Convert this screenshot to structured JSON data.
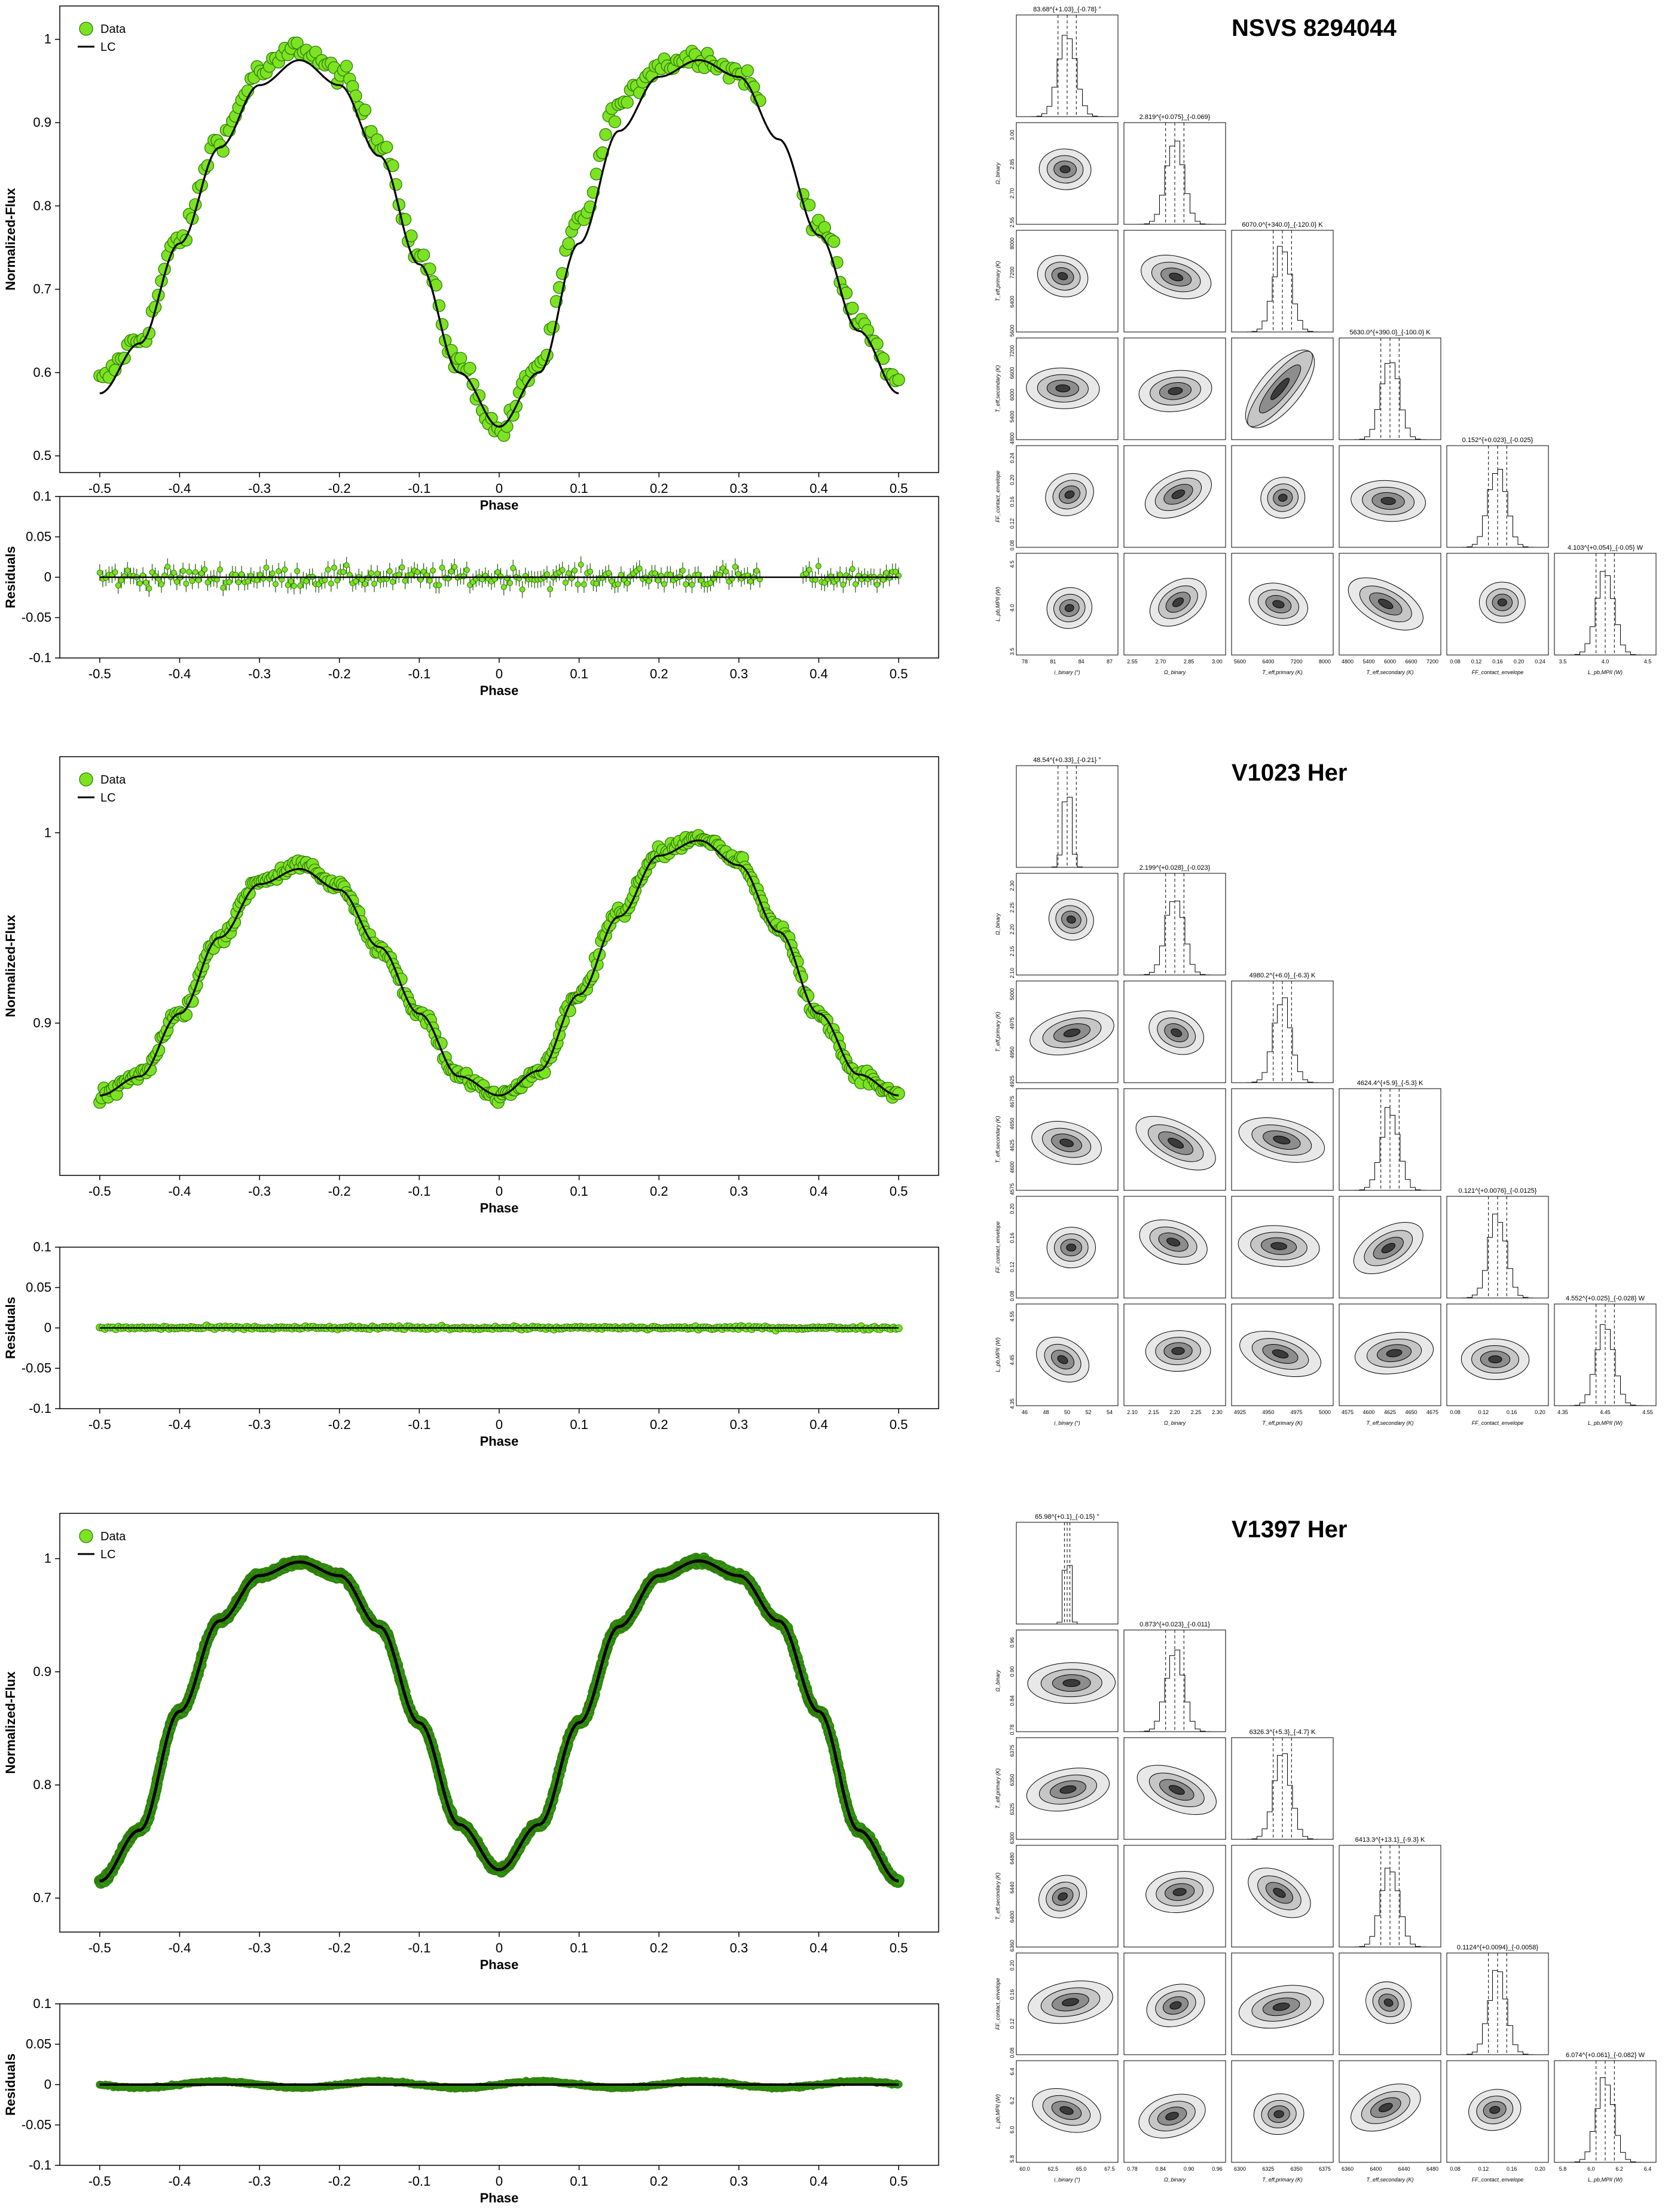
{
  "legend": {
    "data_label": "Data",
    "model_label": "LC"
  },
  "colors": {
    "data_fill": "#7ce322",
    "data_edge": "#2f7a08",
    "model": "#000000",
    "errbar": "#1a5a00",
    "dense_fill": "#2e9b14"
  },
  "axis_labels": {
    "phase": "Phase",
    "flux": "Normalized-Flux",
    "residuals": "Residuals"
  },
  "panels": [
    {
      "system": "NSVS 8294044",
      "lc_ylim": [
        0.48,
        1.04
      ],
      "lc_yticks": [
        "0.5",
        "0.6",
        "0.7",
        "0.8",
        "0.9",
        "1"
      ],
      "xticks": [
        "-0.5",
        "-0.4",
        "-0.3",
        "-0.2",
        "-0.1",
        "0",
        "0.1",
        "0.2",
        "0.3",
        "0.4",
        "0.5"
      ],
      "res_yticks": [
        "0.1",
        "0.05",
        "0",
        "-0.05",
        "-0.1"
      ],
      "corner": {
        "param_labels": [
          "i_binary (°)",
          "Ω_binary",
          "T_eff,primary (K)",
          "T_eff,secondary (K)",
          "FF_contact_envelope",
          "L_pb,MPII (W)"
        ],
        "headers": [
          "83.68^{+1.03}_{-0.78} °",
          "2.819^{+0.075}_{-0.069}",
          "6070.0^{+340.0}_{-120.0} K",
          "5630.0^{+390.0}_{-100.0} K",
          "0.152^{+0.023}_{-0.025}",
          "4.103^{+0.054}_{-0.05} W"
        ],
        "ticks": [
          [
            "78",
            "81",
            "84",
            "87"
          ],
          [
            "2.55",
            "2.70",
            "2.85",
            "3.00"
          ],
          [
            "5600",
            "6400",
            "7200",
            "8000"
          ],
          [
            "4800",
            "5400",
            "6000",
            "6600",
            "7200"
          ],
          [
            "0.08",
            "0.12",
            "0.16",
            "0.20",
            "0.24"
          ],
          [
            "3.5",
            "4.0",
            "4.5"
          ]
        ]
      }
    },
    {
      "system": "V1023 Her",
      "lc_ylim": [
        0.82,
        1.04
      ],
      "lc_yticks": [
        "0.9",
        "1"
      ],
      "xticks": [
        "-0.5",
        "-0.4",
        "-0.3",
        "-0.2",
        "-0.1",
        "0",
        "0.1",
        "0.2",
        "0.3",
        "0.4",
        "0.5"
      ],
      "res_yticks": [
        "0.1",
        "0.05",
        "0",
        "-0.05",
        "-0.1"
      ],
      "corner": {
        "param_labels": [
          "i_binary (°)",
          "Ω_binary",
          "T_eff,primary (K)",
          "T_eff,secondary (K)",
          "FF_contact_envelope",
          "L_pb,MPII (W)"
        ],
        "headers": [
          "48.54^{+0.33}_{-0.21} °",
          "2.199^{+0.028}_{-0.023}",
          "4980.2^{+6.0}_{-6.3} K",
          "4624.4^{+5.9}_{-5.3} K",
          "0.121^{+0.0076}_{-0.0125}",
          "4.552^{+0.025}_{-0.028} W"
        ],
        "ticks": [
          [
            "46",
            "48",
            "50",
            "52",
            "54"
          ],
          [
            "2.10",
            "2.15",
            "2.20",
            "2.25",
            "2.30"
          ],
          [
            "4925",
            "4950",
            "4975",
            "5000"
          ],
          [
            "4575",
            "4600",
            "4625",
            "4650",
            "4675"
          ],
          [
            "0.08",
            "0.12",
            "0.16",
            "0.20"
          ],
          [
            "4.35",
            "4.45",
            "4.55"
          ]
        ]
      }
    },
    {
      "system": "V1397 Her",
      "lc_ylim": [
        0.67,
        1.04
      ],
      "lc_yticks": [
        "0.7",
        "0.8",
        "0.9",
        "1"
      ],
      "xticks": [
        "-0.5",
        "-0.4",
        "-0.3",
        "-0.2",
        "-0.1",
        "0",
        "0.1",
        "0.2",
        "0.3",
        "0.4",
        "0.5"
      ],
      "res_yticks": [
        "0.1",
        "0.05",
        "0",
        "-0.05",
        "-0.1"
      ],
      "corner": {
        "param_labels": [
          "i_binary (°)",
          "Ω_binary",
          "T_eff,primary (K)",
          "T_eff,secondary (K)",
          "FF_contact_envelope",
          "L_pb,MPII (W)"
        ],
        "headers": [
          "65.98^{+0.1}_{-0.15} °",
          "0.873^{+0.023}_{-0.011}",
          "6326.3^{+5.3}_{-4.7} K",
          "6413.3^{+13.1}_{-9.3} K",
          "0.1124^{+0.0094}_{-0.0058}",
          "6.074^{+0.061}_{-0.082} W"
        ],
        "ticks": [
          [
            "60.0",
            "62.5",
            "65.0",
            "67.5"
          ],
          [
            "0.78",
            "0.84",
            "0.90",
            "0.96"
          ],
          [
            "6300",
            "6325",
            "6350",
            "6375"
          ],
          [
            "6360",
            "6400",
            "6440",
            "6480"
          ],
          [
            "0.08",
            "0.12",
            "0.16",
            "0.20"
          ],
          [
            "5.8",
            "6.0",
            "6.2",
            "6.4"
          ]
        ]
      }
    }
  ],
  "chart_data": [
    {
      "type": "scatter",
      "title": "NSVS 8294044",
      "xlabel": "Phase",
      "ylabel": "Normalized-Flux",
      "xlim": [
        -0.55,
        0.55
      ],
      "ylim": [
        0.48,
        1.04
      ],
      "series": [
        {
          "name": "Data",
          "x": [
            -0.5,
            -0.45,
            -0.4,
            -0.35,
            -0.3,
            -0.25,
            -0.2,
            -0.15,
            -0.1,
            -0.05,
            0,
            0.05,
            0.1,
            0.15,
            0.2,
            0.25,
            0.3,
            0.35,
            0.4,
            0.45,
            0.5
          ],
          "values": [
            0.59,
            0.64,
            0.76,
            0.88,
            0.96,
            0.99,
            0.96,
            0.88,
            0.74,
            0.61,
            0.53,
            0.61,
            0.78,
            0.92,
            0.97,
            0.98,
            0.96,
            0.89,
            0.78,
            0.66,
            0.59
          ]
        },
        {
          "name": "LC",
          "x": [
            -0.5,
            -0.45,
            -0.4,
            -0.35,
            -0.3,
            -0.25,
            -0.2,
            -0.15,
            -0.1,
            -0.05,
            0,
            0.05,
            0.1,
            0.15,
            0.2,
            0.25,
            0.3,
            0.35,
            0.4,
            0.45,
            0.5
          ],
          "values": [
            0.575,
            0.635,
            0.755,
            0.87,
            0.945,
            0.975,
            0.945,
            0.86,
            0.73,
            0.6,
            0.535,
            0.6,
            0.755,
            0.89,
            0.955,
            0.975,
            0.955,
            0.88,
            0.765,
            0.65,
            0.575
          ]
        }
      ],
      "residuals": {
        "ylabel": "Residuals",
        "ylim": [
          -0.1,
          0.1
        ],
        "scatter": 0.012
      }
    },
    {
      "type": "scatter",
      "title": "V1023 Her",
      "xlabel": "Phase",
      "ylabel": "Normalized-Flux",
      "xlim": [
        -0.55,
        0.55
      ],
      "ylim": [
        0.82,
        1.04
      ],
      "series": [
        {
          "name": "Data",
          "x": [
            -0.5,
            -0.45,
            -0.4,
            -0.35,
            -0.3,
            -0.25,
            -0.2,
            -0.15,
            -0.1,
            -0.05,
            0,
            0.05,
            0.1,
            0.15,
            0.2,
            0.25,
            0.3,
            0.35,
            0.4,
            0.45,
            0.5
          ],
          "values": [
            0.862,
            0.872,
            0.905,
            0.945,
            0.975,
            0.983,
            0.972,
            0.94,
            0.905,
            0.872,
            0.862,
            0.875,
            0.915,
            0.958,
            0.99,
            0.998,
            0.985,
            0.95,
            0.905,
            0.873,
            0.862
          ]
        },
        {
          "name": "LC",
          "x": [
            -0.5,
            -0.45,
            -0.4,
            -0.35,
            -0.3,
            -0.25,
            -0.2,
            -0.15,
            -0.1,
            -0.05,
            0,
            0.05,
            0.1,
            0.15,
            0.2,
            0.25,
            0.3,
            0.35,
            0.4,
            0.45,
            0.5
          ],
          "values": [
            0.862,
            0.872,
            0.905,
            0.945,
            0.973,
            0.981,
            0.97,
            0.94,
            0.905,
            0.872,
            0.862,
            0.875,
            0.915,
            0.956,
            0.988,
            0.996,
            0.983,
            0.948,
            0.905,
            0.873,
            0.862
          ]
        }
      ],
      "residuals": {
        "ylabel": "Residuals",
        "ylim": [
          -0.1,
          0.1
        ],
        "scatter": 0.002
      }
    },
    {
      "type": "scatter",
      "title": "V1397 Her",
      "xlabel": "Phase",
      "ylabel": "Normalized-Flux",
      "xlim": [
        -0.55,
        0.55
      ],
      "ylim": [
        0.67,
        1.04
      ],
      "series": [
        {
          "name": "Data",
          "x": [
            -0.5,
            -0.45,
            -0.4,
            -0.35,
            -0.3,
            -0.25,
            -0.2,
            -0.15,
            -0.1,
            -0.05,
            0,
            0.05,
            0.1,
            0.15,
            0.2,
            0.25,
            0.3,
            0.35,
            0.4,
            0.45,
            0.5
          ],
          "values": [
            0.715,
            0.76,
            0.865,
            0.945,
            0.985,
            0.997,
            0.985,
            0.94,
            0.855,
            0.765,
            0.725,
            0.765,
            0.855,
            0.94,
            0.985,
            0.998,
            0.985,
            0.945,
            0.865,
            0.76,
            0.715
          ]
        },
        {
          "name": "LC",
          "x": [
            -0.5,
            -0.45,
            -0.4,
            -0.35,
            -0.3,
            -0.25,
            -0.2,
            -0.15,
            -0.1,
            -0.05,
            0,
            0.05,
            0.1,
            0.15,
            0.2,
            0.25,
            0.3,
            0.35,
            0.4,
            0.45,
            0.5
          ],
          "values": [
            0.715,
            0.76,
            0.865,
            0.945,
            0.985,
            0.997,
            0.985,
            0.94,
            0.855,
            0.765,
            0.725,
            0.765,
            0.855,
            0.94,
            0.985,
            0.998,
            0.985,
            0.945,
            0.865,
            0.76,
            0.715
          ]
        }
      ],
      "residuals": {
        "ylabel": "Residuals",
        "ylim": [
          -0.1,
          0.1
        ],
        "scatter": 0.003
      }
    }
  ]
}
